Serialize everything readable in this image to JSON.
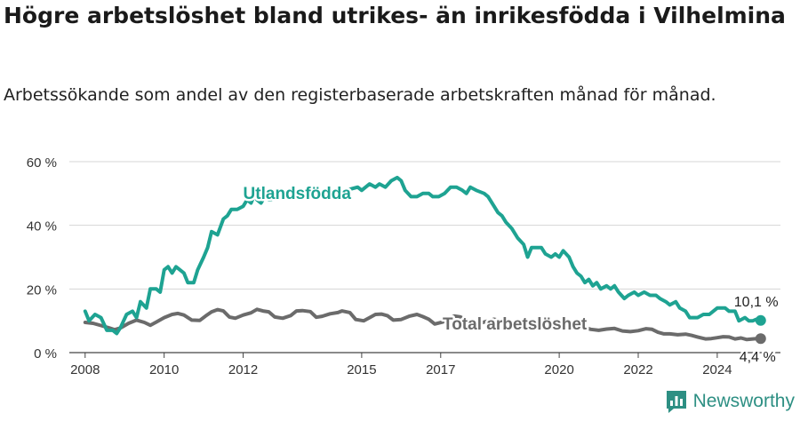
{
  "title": "Högre arbetslöshet bland utrikes- än inrikesfödda i Vilhelmina",
  "subtitle": "Arbetssökande som andel av den registerbaserade arbetskraften månad för månad.",
  "brand": {
    "name": "Newsworthy",
    "color": "#2d8f83"
  },
  "chart_data": {
    "type": "line",
    "x_unit": "year (monthly data)",
    "xlim": [
      2007.6,
      2025.6
    ],
    "ylim": [
      0,
      60
    ],
    "y_ticks": [
      0,
      20,
      40,
      60
    ],
    "y_tick_labels": [
      "0 %",
      "20 %",
      "40 %",
      "60 %"
    ],
    "x_ticks": [
      2008,
      2010,
      2012,
      2015,
      2017,
      2020,
      2022,
      2024
    ],
    "x_tick_labels": [
      "2008",
      "2010",
      "2012",
      "2015",
      "2017",
      "2020",
      "2022",
      "2024"
    ],
    "grid": true,
    "series": [
      {
        "name": "Utlandsfödda",
        "color": "#1ea392",
        "end_label": "10,1 %",
        "points": [
          [
            2008.0,
            13
          ],
          [
            2008.1,
            10
          ],
          [
            2008.25,
            12
          ],
          [
            2008.4,
            11
          ],
          [
            2008.55,
            7
          ],
          [
            2008.7,
            7
          ],
          [
            2008.8,
            6
          ],
          [
            2008.9,
            8
          ],
          [
            2009.05,
            12
          ],
          [
            2009.2,
            13
          ],
          [
            2009.3,
            11
          ],
          [
            2009.4,
            16
          ],
          [
            2009.55,
            14
          ],
          [
            2009.65,
            20
          ],
          [
            2009.8,
            20
          ],
          [
            2009.9,
            19
          ],
          [
            2010.0,
            26
          ],
          [
            2010.1,
            27
          ],
          [
            2010.2,
            25
          ],
          [
            2010.3,
            27
          ],
          [
            2010.4,
            26
          ],
          [
            2010.5,
            25
          ],
          [
            2010.6,
            22
          ],
          [
            2010.75,
            22
          ],
          [
            2010.85,
            26
          ],
          [
            2011.0,
            30
          ],
          [
            2011.1,
            33
          ],
          [
            2011.2,
            38
          ],
          [
            2011.35,
            37
          ],
          [
            2011.5,
            42
          ],
          [
            2011.6,
            43
          ],
          [
            2011.7,
            45
          ],
          [
            2011.85,
            45
          ],
          [
            2012.0,
            46
          ],
          [
            2012.1,
            48
          ],
          [
            2012.2,
            47
          ],
          [
            2012.3,
            50
          ],
          [
            2012.35,
            48
          ],
          [
            2012.45,
            47
          ],
          [
            2012.55,
            49
          ],
          [
            2012.65,
            48
          ],
          [
            2013.0,
            49
          ],
          [
            2013.4,
            49
          ],
          [
            2013.8,
            50
          ],
          [
            2014.2,
            51
          ],
          [
            2014.6,
            51
          ],
          [
            2014.9,
            52
          ],
          [
            2015.0,
            51
          ],
          [
            2015.2,
            53
          ],
          [
            2015.35,
            52
          ],
          [
            2015.45,
            53
          ],
          [
            2015.6,
            52
          ],
          [
            2015.75,
            54
          ],
          [
            2015.9,
            55
          ],
          [
            2016.0,
            54
          ],
          [
            2016.1,
            51
          ],
          [
            2016.25,
            49
          ],
          [
            2016.4,
            49
          ],
          [
            2016.55,
            50
          ],
          [
            2016.7,
            50
          ],
          [
            2016.8,
            49
          ],
          [
            2016.95,
            49
          ],
          [
            2017.1,
            50
          ],
          [
            2017.25,
            52
          ],
          [
            2017.4,
            52
          ],
          [
            2017.55,
            51
          ],
          [
            2017.65,
            50
          ],
          [
            2017.75,
            52
          ],
          [
            2017.9,
            51
          ],
          [
            2018.1,
            50
          ],
          [
            2018.2,
            49
          ],
          [
            2018.35,
            46
          ],
          [
            2018.45,
            44
          ],
          [
            2018.55,
            43
          ],
          [
            2018.65,
            41
          ],
          [
            2018.8,
            39
          ],
          [
            2018.95,
            36
          ],
          [
            2019.1,
            34
          ],
          [
            2019.2,
            30
          ],
          [
            2019.3,
            33
          ],
          [
            2019.45,
            33
          ],
          [
            2019.55,
            33
          ],
          [
            2019.65,
            31
          ],
          [
            2019.8,
            30
          ],
          [
            2019.9,
            31
          ],
          [
            2020.0,
            30
          ],
          [
            2020.1,
            32
          ],
          [
            2020.25,
            30
          ],
          [
            2020.35,
            27
          ],
          [
            2020.45,
            25
          ],
          [
            2020.55,
            24
          ],
          [
            2020.65,
            22
          ],
          [
            2020.75,
            23
          ],
          [
            2020.85,
            21
          ],
          [
            2020.95,
            22
          ],
          [
            2021.05,
            20
          ],
          [
            2021.2,
            21
          ],
          [
            2021.3,
            20
          ],
          [
            2021.4,
            21
          ],
          [
            2021.5,
            19
          ],
          [
            2021.65,
            17
          ],
          [
            2021.75,
            18
          ],
          [
            2021.9,
            19
          ],
          [
            2022.0,
            18
          ],
          [
            2022.15,
            19
          ],
          [
            2022.3,
            18
          ],
          [
            2022.45,
            18
          ],
          [
            2022.55,
            17
          ],
          [
            2022.7,
            16
          ],
          [
            2022.8,
            15
          ],
          [
            2022.95,
            16
          ],
          [
            2023.05,
            14
          ],
          [
            2023.2,
            13
          ],
          [
            2023.3,
            11
          ],
          [
            2023.5,
            11
          ],
          [
            2023.65,
            12
          ],
          [
            2023.8,
            12
          ],
          [
            2023.9,
            13
          ],
          [
            2024.0,
            14
          ],
          [
            2024.1,
            14
          ],
          [
            2024.2,
            14
          ],
          [
            2024.3,
            13
          ],
          [
            2024.45,
            13
          ],
          [
            2024.55,
            10
          ],
          [
            2024.7,
            11
          ],
          [
            2024.8,
            10
          ],
          [
            2024.9,
            10
          ],
          [
            2025.0,
            10.5
          ],
          [
            2025.1,
            10.1
          ]
        ]
      },
      {
        "name": "Total arbetslöshet",
        "color": "#6b6b6b",
        "end_label": "4,4 %",
        "points": [
          [
            2008.0,
            9.5
          ],
          [
            2008.2,
            9.2
          ],
          [
            2008.4,
            8.5
          ],
          [
            2008.6,
            7.8
          ],
          [
            2008.75,
            7.2
          ],
          [
            2008.9,
            7.8
          ],
          [
            2009.1,
            9.2
          ],
          [
            2009.3,
            10.2
          ],
          [
            2009.5,
            9.5
          ],
          [
            2009.65,
            8.6
          ],
          [
            2009.8,
            9.6
          ],
          [
            2010.0,
            11
          ],
          [
            2010.2,
            12
          ],
          [
            2010.35,
            12.3
          ],
          [
            2010.5,
            11.8
          ],
          [
            2010.7,
            10.2
          ],
          [
            2010.9,
            10.1
          ],
          [
            2011.05,
            11.5
          ],
          [
            2011.2,
            12.8
          ],
          [
            2011.35,
            13.5
          ],
          [
            2011.5,
            13.1
          ],
          [
            2011.65,
            11.2
          ],
          [
            2011.8,
            10.8
          ],
          [
            2012.0,
            11.8
          ],
          [
            2012.2,
            12.5
          ],
          [
            2012.35,
            13.6
          ],
          [
            2012.5,
            13.1
          ],
          [
            2012.65,
            12.8
          ],
          [
            2012.8,
            11.2
          ],
          [
            2013.0,
            10.8
          ],
          [
            2013.2,
            11.6
          ],
          [
            2013.35,
            13.1
          ],
          [
            2013.5,
            13.2
          ],
          [
            2013.7,
            12.9
          ],
          [
            2013.85,
            11.1
          ],
          [
            2014.0,
            11.4
          ],
          [
            2014.2,
            12.2
          ],
          [
            2014.4,
            12.6
          ],
          [
            2014.5,
            13.1
          ],
          [
            2014.7,
            12.6
          ],
          [
            2014.85,
            10.4
          ],
          [
            2015.05,
            10
          ],
          [
            2015.2,
            11
          ],
          [
            2015.35,
            12
          ],
          [
            2015.5,
            12.1
          ],
          [
            2015.65,
            11.6
          ],
          [
            2015.8,
            10.2
          ],
          [
            2016.0,
            10.4
          ],
          [
            2016.2,
            11.4
          ],
          [
            2016.4,
            12
          ],
          [
            2016.55,
            11.3
          ],
          [
            2016.7,
            10.5
          ],
          [
            2016.85,
            9
          ],
          [
            2017.05,
            9.6
          ],
          [
            2017.2,
            10.6
          ],
          [
            2017.35,
            11.5
          ],
          [
            2017.5,
            11.2
          ],
          [
            2017.65,
            10.2
          ],
          [
            2017.8,
            9.4
          ],
          [
            2018.0,
            9.2
          ],
          [
            2018.15,
            9.8
          ],
          [
            2018.35,
            10.5
          ],
          [
            2018.5,
            10.1
          ],
          [
            2018.65,
            9.1
          ],
          [
            2018.8,
            8.4
          ],
          [
            2019.0,
            8.4
          ],
          [
            2019.2,
            9
          ],
          [
            2019.4,
            9.3
          ],
          [
            2019.6,
            8.5
          ],
          [
            2019.8,
            7.8
          ],
          [
            2020.0,
            7.6
          ],
          [
            2020.2,
            8.1
          ],
          [
            2020.4,
            8.4
          ],
          [
            2020.6,
            8
          ],
          [
            2020.8,
            7.3
          ],
          [
            2021.0,
            7
          ],
          [
            2021.2,
            7.4
          ],
          [
            2021.4,
            7.6
          ],
          [
            2021.6,
            6.8
          ],
          [
            2021.8,
            6.6
          ],
          [
            2022.0,
            6.9
          ],
          [
            2022.2,
            7.5
          ],
          [
            2022.35,
            7.3
          ],
          [
            2022.5,
            6.4
          ],
          [
            2022.65,
            5.9
          ],
          [
            2022.8,
            5.9
          ],
          [
            2023.0,
            5.6
          ],
          [
            2023.2,
            5.8
          ],
          [
            2023.35,
            5.4
          ],
          [
            2023.5,
            4.9
          ],
          [
            2023.7,
            4.3
          ],
          [
            2023.85,
            4.4
          ],
          [
            2024.0,
            4.7
          ],
          [
            2024.15,
            5
          ],
          [
            2024.3,
            4.9
          ],
          [
            2024.45,
            4.3
          ],
          [
            2024.6,
            4.6
          ],
          [
            2024.75,
            4.1
          ],
          [
            2024.9,
            4.3
          ],
          [
            2025.0,
            4.4
          ],
          [
            2025.1,
            4.4
          ]
        ]
      }
    ]
  }
}
